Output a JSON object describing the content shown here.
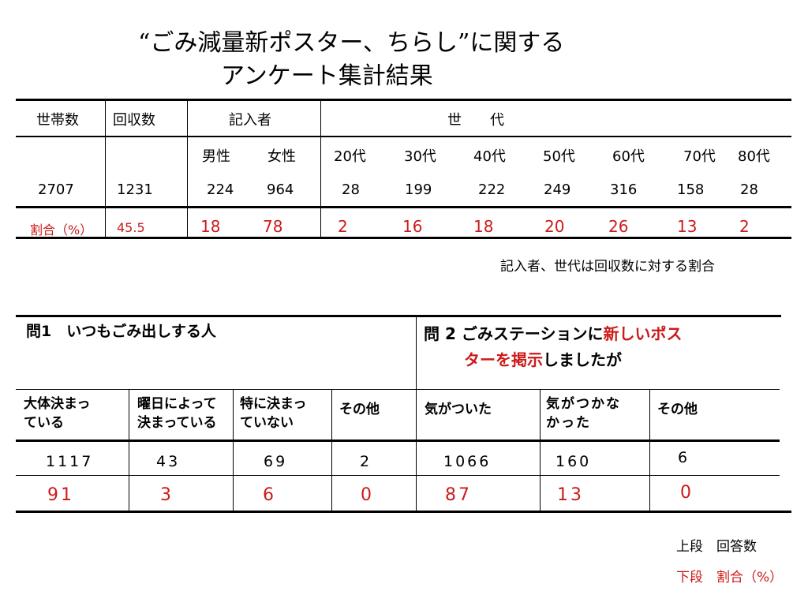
{
  "title": {
    "line1": "“ごみ減量新ポスター、ちらし”に関する",
    "line2": "アンケート集計結果"
  },
  "table1": {
    "headers": {
      "households": "世帯数",
      "responses": "回収数",
      "respondents": "記入者",
      "generation": "世　　代"
    },
    "subheaders": {
      "male": "男性",
      "female": "女性",
      "ages": [
        "20代",
        "30代",
        "40代",
        "50代",
        "60代",
        "70代",
        "80代"
      ]
    },
    "counts": {
      "households": "2707",
      "responses": "1231",
      "male": "224",
      "female": "964",
      "ages": [
        "28",
        "199",
        "222",
        "249",
        "316",
        "158",
        "28"
      ]
    },
    "ratio": {
      "label": "割合（%）",
      "responses": "45.5",
      "male": "18",
      "female": "78",
      "ages": [
        "2",
        "16",
        "18",
        "20",
        "26",
        "13",
        "2"
      ]
    },
    "footnote": "記入者、世代は回収数に対する割合"
  },
  "table2": {
    "q1": {
      "title": "問1　いつもごみ出しする人",
      "options": [
        {
          "line1": "大体決まっ",
          "line2": "ている"
        },
        {
          "line1": "曜日によって",
          "line2": "決まっている"
        },
        {
          "line1": "特に決まっ",
          "line2": "ていない"
        },
        {
          "line1": "その他",
          "line2": ""
        }
      ],
      "counts": [
        "1117",
        "43",
        "69",
        "2"
      ],
      "ratios": [
        "91",
        "3",
        "6",
        "0"
      ]
    },
    "q2": {
      "title_prefix": "問 2 ごみステーションに",
      "title_red1": "新しいポス",
      "title_red2": "ターを掲示",
      "title_suffix": "しましたが",
      "options": [
        {
          "line1": "気がついた",
          "line2": ""
        },
        {
          "line1": "気がつかな",
          "line2": "かった"
        },
        {
          "line1": "その他",
          "line2": ""
        }
      ],
      "counts": [
        "1066",
        "160",
        "6"
      ],
      "ratios": [
        "87",
        "13",
        "0"
      ]
    }
  },
  "legend": {
    "upper": "上段　回答数",
    "lower": "下段　割合（%）"
  },
  "colors": {
    "accent_red": "#cc1a1a",
    "line": "#000000"
  }
}
